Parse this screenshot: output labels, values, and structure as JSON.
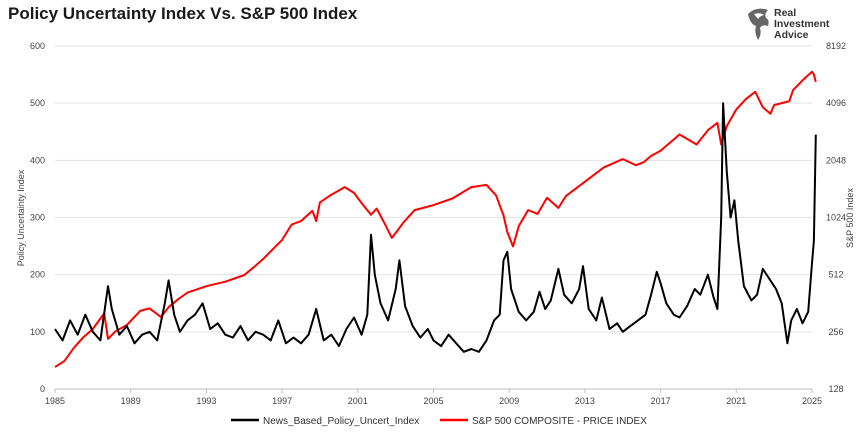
{
  "chart_data": {
    "type": "line",
    "title": "Policy Uncertainty Index Vs. S&P 500 Index",
    "y_left": {
      "label": "Policy Uncertainty Index",
      "range": [
        0,
        600
      ],
      "ticks": [
        "0",
        "100",
        "200",
        "300",
        "400",
        "500",
        "600"
      ]
    },
    "y_right": {
      "label": "S&P 500 Index",
      "scale": "log2",
      "range": [
        128,
        8192
      ],
      "ticks": [
        "128",
        "256",
        "512",
        "1024",
        "2048",
        "4096",
        "8192"
      ]
    },
    "x_axis": {
      "range": [
        1985,
        2025
      ],
      "ticks": [
        "1985",
        "1989",
        "1993",
        "1997",
        "2001",
        "2005",
        "2009",
        "2013",
        "2017",
        "2021",
        "2025"
      ]
    },
    "grid": "horizontal",
    "legend_position": "bottom",
    "series": [
      {
        "name": "News_Based_Policy_Uncert_Index",
        "axis": "left",
        "color": "#000000",
        "points": [
          [
            1985.0,
            105
          ],
          [
            1985.4,
            85
          ],
          [
            1985.8,
            120
          ],
          [
            1986.2,
            95
          ],
          [
            1986.6,
            130
          ],
          [
            1987.0,
            100
          ],
          [
            1987.4,
            85
          ],
          [
            1987.8,
            180
          ],
          [
            1988.0,
            140
          ],
          [
            1988.4,
            95
          ],
          [
            1988.8,
            110
          ],
          [
            1989.2,
            80
          ],
          [
            1989.6,
            95
          ],
          [
            1990.0,
            100
          ],
          [
            1990.4,
            85
          ],
          [
            1990.8,
            150
          ],
          [
            1991.0,
            190
          ],
          [
            1991.3,
            130
          ],
          [
            1991.6,
            100
          ],
          [
            1992.0,
            120
          ],
          [
            1992.4,
            130
          ],
          [
            1992.8,
            150
          ],
          [
            1993.2,
            105
          ],
          [
            1993.6,
            115
          ],
          [
            1994.0,
            95
          ],
          [
            1994.4,
            90
          ],
          [
            1994.8,
            110
          ],
          [
            1995.2,
            85
          ],
          [
            1995.6,
            100
          ],
          [
            1996.0,
            95
          ],
          [
            1996.4,
            85
          ],
          [
            1996.8,
            120
          ],
          [
            1997.2,
            80
          ],
          [
            1997.6,
            90
          ],
          [
            1998.0,
            80
          ],
          [
            1998.4,
            95
          ],
          [
            1998.8,
            140
          ],
          [
            1999.2,
            85
          ],
          [
            1999.6,
            95
          ],
          [
            2000.0,
            75
          ],
          [
            2000.4,
            105
          ],
          [
            2000.8,
            125
          ],
          [
            2001.2,
            95
          ],
          [
            2001.5,
            130
          ],
          [
            2001.7,
            270
          ],
          [
            2001.9,
            200
          ],
          [
            2002.2,
            150
          ],
          [
            2002.6,
            120
          ],
          [
            2003.0,
            175
          ],
          [
            2003.2,
            225
          ],
          [
            2003.5,
            145
          ],
          [
            2003.9,
            110
          ],
          [
            2004.3,
            90
          ],
          [
            2004.7,
            105
          ],
          [
            2005.0,
            85
          ],
          [
            2005.4,
            75
          ],
          [
            2005.8,
            95
          ],
          [
            2006.2,
            80
          ],
          [
            2006.6,
            65
          ],
          [
            2007.0,
            70
          ],
          [
            2007.4,
            65
          ],
          [
            2007.8,
            85
          ],
          [
            2008.2,
            120
          ],
          [
            2008.5,
            130
          ],
          [
            2008.7,
            225
          ],
          [
            2008.9,
            240
          ],
          [
            2009.1,
            175
          ],
          [
            2009.5,
            135
          ],
          [
            2009.9,
            120
          ],
          [
            2010.3,
            135
          ],
          [
            2010.6,
            170
          ],
          [
            2010.9,
            140
          ],
          [
            2011.2,
            155
          ],
          [
            2011.6,
            210
          ],
          [
            2011.9,
            165
          ],
          [
            2012.3,
            150
          ],
          [
            2012.7,
            175
          ],
          [
            2012.9,
            215
          ],
          [
            2013.2,
            140
          ],
          [
            2013.6,
            120
          ],
          [
            2013.9,
            160
          ],
          [
            2014.3,
            105
          ],
          [
            2014.7,
            115
          ],
          [
            2015.0,
            100
          ],
          [
            2015.4,
            110
          ],
          [
            2015.8,
            120
          ],
          [
            2016.2,
            130
          ],
          [
            2016.5,
            165
          ],
          [
            2016.8,
            205
          ],
          [
            2017.0,
            185
          ],
          [
            2017.3,
            150
          ],
          [
            2017.7,
            130
          ],
          [
            2018.0,
            125
          ],
          [
            2018.4,
            145
          ],
          [
            2018.8,
            175
          ],
          [
            2019.1,
            165
          ],
          [
            2019.5,
            200
          ],
          [
            2019.8,
            160
          ],
          [
            2020.0,
            140
          ],
          [
            2020.2,
            300
          ],
          [
            2020.3,
            500
          ],
          [
            2020.5,
            380
          ],
          [
            2020.7,
            300
          ],
          [
            2020.9,
            330
          ],
          [
            2021.1,
            260
          ],
          [
            2021.4,
            180
          ],
          [
            2021.8,
            155
          ],
          [
            2022.1,
            165
          ],
          [
            2022.4,
            210
          ],
          [
            2022.8,
            190
          ],
          [
            2023.1,
            175
          ],
          [
            2023.4,
            150
          ],
          [
            2023.7,
            80
          ],
          [
            2023.9,
            120
          ],
          [
            2024.2,
            140
          ],
          [
            2024.5,
            115
          ],
          [
            2024.8,
            135
          ],
          [
            2025.0,
            220
          ],
          [
            2025.1,
            260
          ],
          [
            2025.2,
            445
          ]
        ]
      },
      {
        "name": "S&P 500 COMPOSITE - PRICE INDEX",
        "axis": "right",
        "color": "#ff0000",
        "points": [
          [
            1985.0,
            167
          ],
          [
            1985.5,
            180
          ],
          [
            1986.0,
            211
          ],
          [
            1986.5,
            240
          ],
          [
            1987.0,
            265
          ],
          [
            1987.6,
            320
          ],
          [
            1987.8,
            235
          ],
          [
            1988.2,
            258
          ],
          [
            1988.8,
            278
          ],
          [
            1989.5,
            330
          ],
          [
            1990.0,
            340
          ],
          [
            1990.6,
            306
          ],
          [
            1991.0,
            345
          ],
          [
            1991.5,
            380
          ],
          [
            1992.0,
            412
          ],
          [
            1993.0,
            445
          ],
          [
            1994.0,
            470
          ],
          [
            1995.0,
            510
          ],
          [
            1995.5,
            560
          ],
          [
            1996.0,
            620
          ],
          [
            1997.0,
            780
          ],
          [
            1997.5,
            940
          ],
          [
            1998.0,
            980
          ],
          [
            1998.6,
            1110
          ],
          [
            1998.8,
            980
          ],
          [
            1999.0,
            1230
          ],
          [
            1999.5,
            1330
          ],
          [
            2000.0,
            1420
          ],
          [
            2000.3,
            1480
          ],
          [
            2000.8,
            1380
          ],
          [
            2001.2,
            1220
          ],
          [
            2001.7,
            1060
          ],
          [
            2002.0,
            1140
          ],
          [
            2002.4,
            960
          ],
          [
            2002.8,
            800
          ],
          [
            2003.0,
            850
          ],
          [
            2003.4,
            960
          ],
          [
            2004.0,
            1120
          ],
          [
            2005.0,
            1190
          ],
          [
            2006.0,
            1290
          ],
          [
            2007.0,
            1480
          ],
          [
            2007.8,
            1520
          ],
          [
            2008.3,
            1340
          ],
          [
            2008.7,
            1050
          ],
          [
            2008.9,
            860
          ],
          [
            2009.2,
            720
          ],
          [
            2009.5,
            920
          ],
          [
            2010.0,
            1120
          ],
          [
            2010.5,
            1070
          ],
          [
            2011.0,
            1300
          ],
          [
            2011.6,
            1150
          ],
          [
            2012.0,
            1330
          ],
          [
            2013.0,
            1580
          ],
          [
            2014.0,
            1880
          ],
          [
            2015.0,
            2080
          ],
          [
            2015.7,
            1930
          ],
          [
            2016.1,
            2000
          ],
          [
            2016.5,
            2160
          ],
          [
            2017.0,
            2300
          ],
          [
            2018.0,
            2800
          ],
          [
            2018.9,
            2480
          ],
          [
            2019.5,
            2950
          ],
          [
            2020.0,
            3230
          ],
          [
            2020.2,
            2480
          ],
          [
            2020.5,
            3100
          ],
          [
            2021.0,
            3800
          ],
          [
            2021.5,
            4300
          ],
          [
            2022.0,
            4700
          ],
          [
            2022.4,
            3900
          ],
          [
            2022.8,
            3600
          ],
          [
            2023.0,
            4000
          ],
          [
            2023.8,
            4200
          ],
          [
            2024.0,
            4800
          ],
          [
            2024.5,
            5400
          ],
          [
            2025.0,
            6000
          ],
          [
            2025.1,
            5800
          ],
          [
            2025.2,
            5300
          ]
        ]
      }
    ]
  },
  "logo": {
    "line1": "Real",
    "line2": "Investment",
    "line3": "Advice"
  }
}
